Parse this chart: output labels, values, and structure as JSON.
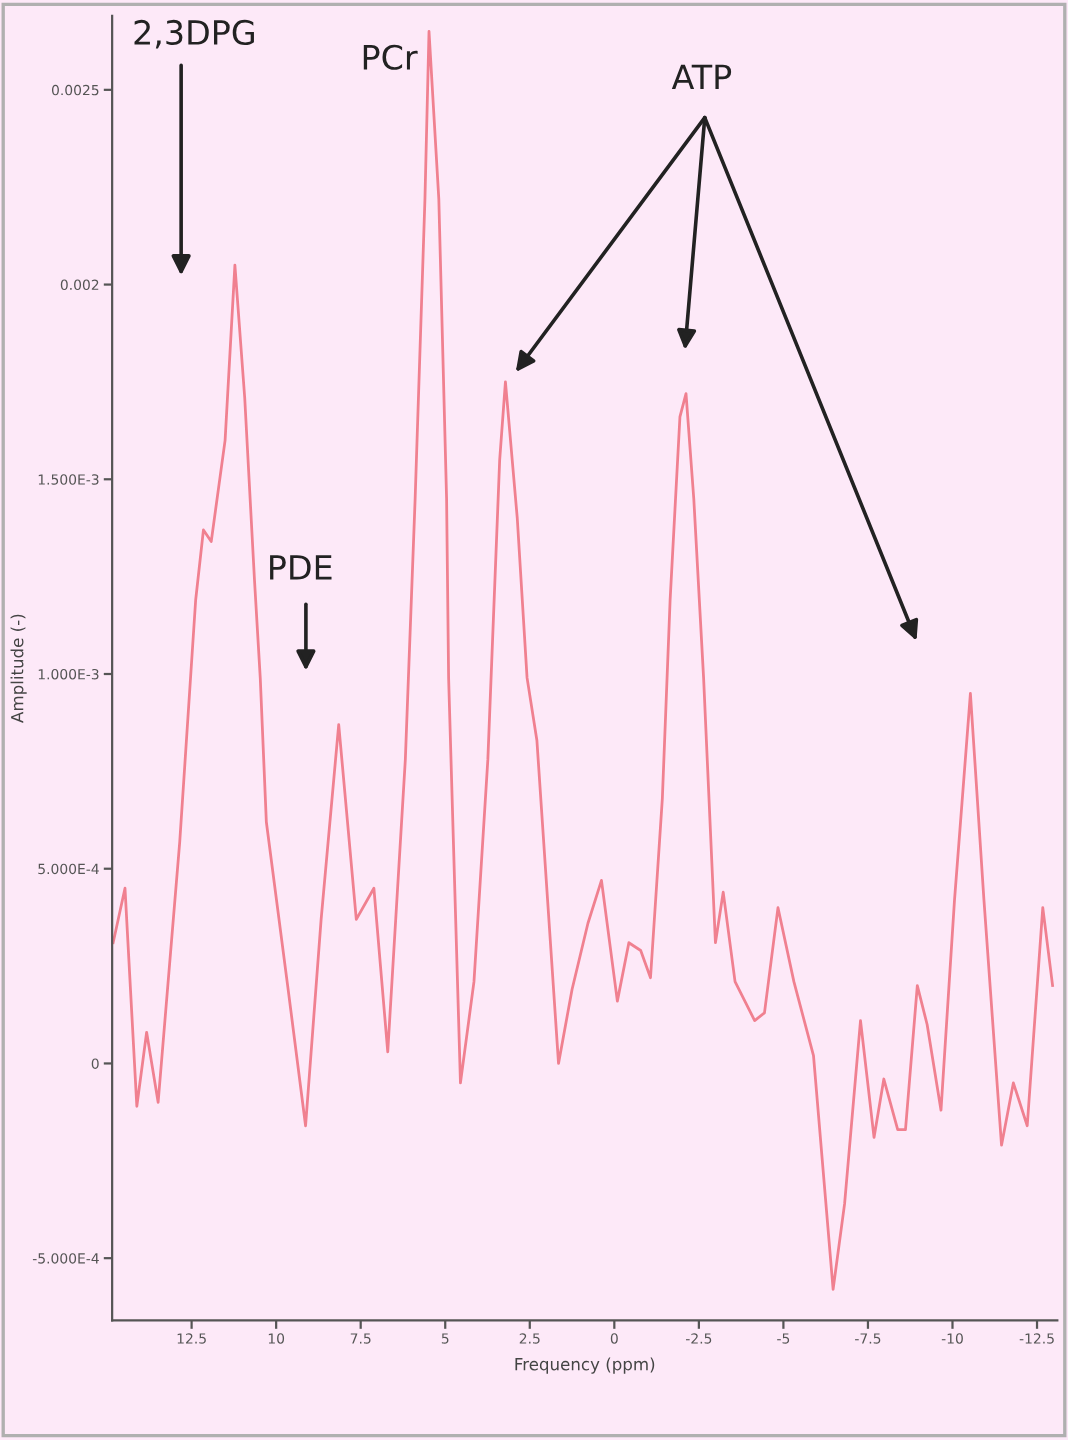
{
  "chart_data": {
    "type": "line",
    "xlabel": "Frequency (ppm)",
    "ylabel": "Amplitude (-)",
    "x": [
      14.82,
      14.47,
      14.12,
      13.83,
      13.49,
      12.85,
      12.38,
      12.15,
      11.92,
      11.51,
      11.22,
      10.93,
      10.64,
      10.47,
      10.29,
      9.66,
      9.13,
      8.67,
      8.15,
      7.63,
      7.11,
      6.7,
      6.18,
      5.89,
      5.6,
      5.48,
      5.19,
      4.96,
      4.9,
      4.55,
      4.15,
      3.74,
      3.39,
      3.22,
      2.87,
      2.58,
      2.29,
      1.65,
      1.25,
      0.78,
      0.38,
      -0.09,
      -0.43,
      -0.78,
      -1.07,
      -1.42,
      -1.65,
      -1.94,
      -2.12,
      -2.35,
      -2.64,
      -2.99,
      -3.22,
      -3.57,
      -4.15,
      -4.44,
      -4.84,
      -5.31,
      -5.89,
      -6.47,
      -6.81,
      -7.28,
      -7.68,
      -7.97,
      -8.38,
      -8.61,
      -8.96,
      -9.25,
      -9.66,
      -10.06,
      -10.53,
      -10.93,
      -11.45,
      -11.8,
      -12.21,
      -12.67,
      -12.96
    ],
    "series": [
      {
        "color": "#f08090",
        "values": [
          0.00031,
          0.00045,
          -0.00011,
          8e-05,
          -0.0001,
          0.00057,
          0.00119,
          0.00137,
          0.00134,
          0.0016,
          0.00205,
          0.00171,
          0.00124,
          0.00099,
          0.00062,
          0.0002,
          -0.00016,
          0.00037,
          0.00087,
          0.00037,
          0.00045,
          3e-05,
          0.00078,
          0.00145,
          0.00222,
          0.00265,
          0.00222,
          0.00145,
          0.00099,
          -5e-05,
          0.00021,
          0.00078,
          0.00155,
          0.00175,
          0.0014,
          0.00099,
          0.00083,
          0.0,
          0.00019,
          0.00036,
          0.00047,
          0.00016,
          0.00031,
          0.00029,
          0.00022,
          0.00068,
          0.00119,
          0.00166,
          0.00172,
          0.00145,
          0.00099,
          0.00031,
          0.00044,
          0.00021,
          0.00011,
          0.00013,
          0.0004,
          0.00021,
          2e-05,
          -0.00058,
          -0.00036,
          0.00011,
          -0.00019,
          -4e-05,
          -0.00017,
          -0.00017,
          0.0002,
          0.0001,
          -0.00012,
          0.00042,
          0.00095,
          0.00042,
          -0.00021,
          -5e-05,
          -0.00016,
          0.0004,
          0.0002
        ]
      }
    ],
    "xlim": [
      14.85,
      -13.1
    ],
    "xticks": [
      12.5,
      10,
      7.5,
      5,
      2.5,
      0,
      -2.5,
      -5,
      -7.5,
      -10,
      -12.5
    ],
    "ylim": [
      -0.00066,
      0.00269
    ],
    "yticks": [
      {
        "value": -0.0005,
        "label": "-5.000E-4"
      },
      0,
      {
        "value": 0.0005,
        "label": "5.000E-4"
      },
      {
        "value": 0.001,
        "label": "1.000E-3"
      },
      {
        "value": 0.0015,
        "label": "1.500E-3"
      },
      {
        "value": 0.002,
        "label": "0.002"
      },
      {
        "value": 0.0025,
        "label": "0.0025"
      }
    ],
    "grid": false,
    "marker": "none",
    "line_style": "solid",
    "annotations": [
      "2,3DPG",
      "PCr",
      "PDE",
      "ATP"
    ]
  }
}
